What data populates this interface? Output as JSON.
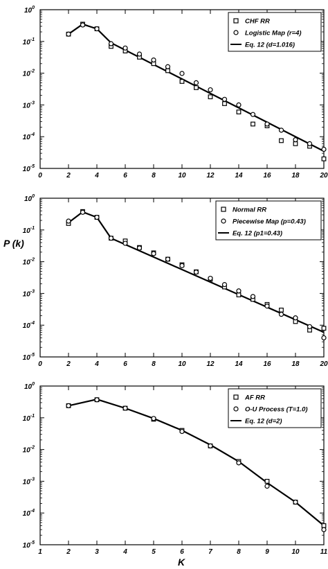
{
  "ylabel": "P (k)",
  "xlabel": "K",
  "chart_data": [
    {
      "type": "scatter",
      "ylog": true,
      "xlim": [
        0,
        20
      ],
      "ylim_exp": [
        -5,
        0
      ],
      "xticks": [
        "0",
        "2",
        "4",
        "6",
        "8",
        "10",
        "12",
        "14",
        "16",
        "18",
        "20"
      ],
      "xtick_values": [
        0,
        2,
        4,
        6,
        8,
        10,
        12,
        14,
        16,
        18,
        20
      ],
      "ytick_exps": [
        "0",
        "-1",
        "-2",
        "-3",
        "-4",
        "-5"
      ],
      "legend_position": "top-right",
      "series": [
        {
          "name": "CHF RR",
          "marker": "square",
          "x": [
            2,
            3,
            4,
            5,
            6,
            7,
            8,
            9,
            10,
            11,
            12,
            13,
            14,
            15,
            16,
            17,
            18,
            19,
            20
          ],
          "y": [
            0.17,
            0.35,
            0.25,
            0.07,
            0.05,
            0.032,
            0.02,
            0.012,
            0.0055,
            0.0035,
            0.0018,
            0.0011,
            0.0006,
            0.00025,
            0.00022,
            7.5e-05,
            6e-05,
            5e-05,
            2e-05
          ]
        },
        {
          "name": "Logistic Map (r=4)",
          "marker": "circle",
          "x": [
            2,
            3,
            4,
            5,
            6,
            7,
            8,
            9,
            10,
            11,
            12,
            13,
            14,
            15,
            16,
            17,
            18,
            19,
            20
          ],
          "y": [
            0.17,
            0.33,
            0.25,
            0.085,
            0.062,
            0.04,
            0.026,
            0.016,
            0.0098,
            0.005,
            0.003,
            0.0015,
            0.001,
            0.0005,
            0.00025,
            0.00016,
            8e-05,
            6e-05,
            4e-05
          ]
        },
        {
          "name": "Eq. 12 (d=1.016)",
          "marker": "line",
          "x": [
            2,
            3,
            4,
            5,
            20
          ],
          "y": [
            0.17,
            0.35,
            0.25,
            0.09,
            3.5e-05
          ]
        }
      ]
    },
    {
      "type": "scatter",
      "ylog": true,
      "xlim": [
        0,
        20
      ],
      "ylim_exp": [
        -5,
        0
      ],
      "xticks": [
        "0",
        "2",
        "4",
        "6",
        "8",
        "10",
        "12",
        "14",
        "16",
        "18",
        "20"
      ],
      "xtick_values": [
        0,
        2,
        4,
        6,
        8,
        10,
        12,
        14,
        16,
        18,
        20
      ],
      "ytick_exps": [
        "0",
        "-1",
        "-2",
        "-3",
        "-4",
        "-5"
      ],
      "legend_position": "top-right",
      "series": [
        {
          "name": "Normal RR",
          "marker": "square",
          "x": [
            2,
            3,
            4,
            5,
            6,
            7,
            8,
            9,
            10,
            11,
            12,
            13,
            14,
            15,
            16,
            17,
            18,
            19,
            20
          ],
          "y": [
            0.16,
            0.38,
            0.25,
            0.055,
            0.045,
            0.028,
            0.019,
            0.012,
            0.008,
            0.0048,
            0.0028,
            0.0016,
            0.0009,
            0.00065,
            0.00045,
            0.0003,
            0.00013,
            7e-05,
            8e-05
          ]
        },
        {
          "name": "Piecewise Map (p=0.43)",
          "marker": "circle",
          "x": [
            2,
            3,
            4,
            5,
            6,
            7,
            8,
            9,
            10,
            11,
            12,
            13,
            14,
            15,
            16,
            17,
            18,
            19,
            20
          ],
          "y": [
            0.19,
            0.36,
            0.25,
            0.055,
            0.038,
            0.027,
            0.018,
            0.012,
            0.0075,
            0.0047,
            0.003,
            0.0019,
            0.0012,
            0.0008,
            0.0004,
            0.00022,
            0.00017,
            9e-05,
            4e-05
          ]
        },
        {
          "name": "Eq. 12 (p1=0.43)",
          "marker": "line",
          "x": [
            2,
            3,
            4,
            5,
            20
          ],
          "y": [
            0.17,
            0.37,
            0.25,
            0.055,
            6e-05
          ]
        }
      ]
    },
    {
      "type": "scatter",
      "ylog": true,
      "xlim": [
        1,
        11
      ],
      "ylim_exp": [
        -5,
        0
      ],
      "xticks": [
        "1",
        "2",
        "3",
        "4",
        "5",
        "6",
        "7",
        "8",
        "9",
        "10",
        "11"
      ],
      "xtick_values": [
        1,
        2,
        3,
        4,
        5,
        6,
        7,
        8,
        9,
        10,
        11
      ],
      "ytick_exps": [
        "0",
        "-1",
        "-2",
        "-3",
        "-4",
        "-5"
      ],
      "legend_position": "top-right",
      "series": [
        {
          "name": "AF RR",
          "marker": "square",
          "x": [
            2,
            3,
            4,
            5,
            6,
            7,
            8,
            9,
            10,
            11
          ],
          "y": [
            0.24,
            0.37,
            0.2,
            0.09,
            0.04,
            0.013,
            0.0042,
            0.001,
            0.00022,
            4e-05
          ]
        },
        {
          "name": "O-U Process (T=1.0)",
          "marker": "circle",
          "x": [
            2,
            3,
            4,
            5,
            6,
            7,
            8,
            9,
            10,
            11
          ],
          "y": [
            0.24,
            0.37,
            0.2,
            0.095,
            0.037,
            0.013,
            0.0038,
            0.0007,
            0.00022,
            3e-05
          ]
        },
        {
          "name": "Eq. 12 (d=2)",
          "marker": "line",
          "x": [
            2,
            3,
            4,
            5,
            6,
            7,
            8,
            9,
            10,
            11
          ],
          "y": [
            0.24,
            0.38,
            0.2,
            0.095,
            0.04,
            0.014,
            0.0042,
            0.0009,
            0.00022,
            4e-05
          ]
        }
      ]
    }
  ]
}
